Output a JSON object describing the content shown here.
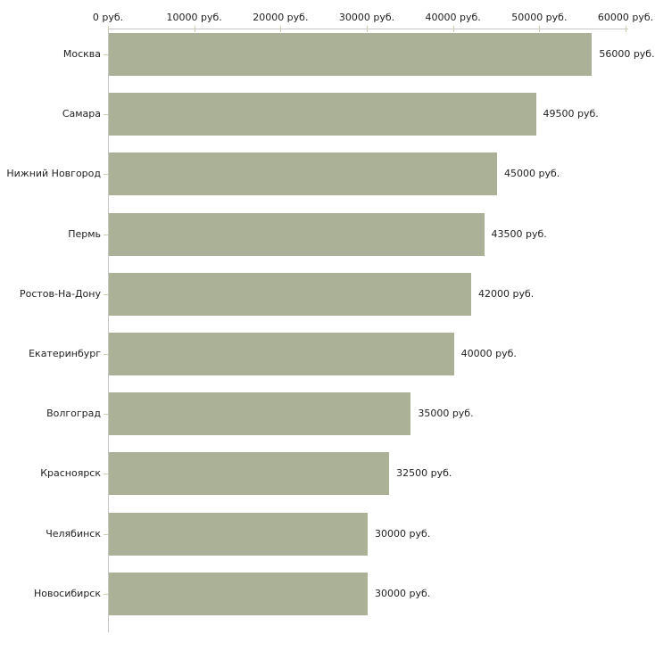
{
  "chart_data": {
    "type": "bar",
    "orientation": "horizontal",
    "title": "",
    "categories": [
      "Москва",
      "Самара",
      "Нижний Новгород",
      "Пермь",
      "Ростов-На-Дону",
      "Екатеринбург",
      "Волгоград",
      "Красноярск",
      "Челябинск",
      "Новосибирск"
    ],
    "values": [
      56000,
      49500,
      45000,
      43500,
      42000,
      40000,
      35000,
      32500,
      30000,
      30000
    ],
    "value_labels": [
      "56000 руб.",
      "49500 руб.",
      "45000 руб.",
      "43500 руб.",
      "42000 руб.",
      "40000 руб.",
      "35000 руб.",
      "32500 руб.",
      "30000 руб.",
      "30000 руб."
    ],
    "x_axis": {
      "position": "top",
      "tick_labels": [
        "0 руб.",
        "10000 руб.",
        "20000 руб.",
        "30000 руб.",
        "40000 руб.",
        "50000 руб.",
        "60000 руб."
      ],
      "tick_values": [
        0,
        10000,
        20000,
        30000,
        40000,
        50000,
        60000
      ],
      "xlim": [
        0,
        60000
      ]
    },
    "ylabel": "",
    "xlabel": "",
    "grid": "off",
    "legend": "none",
    "colors": {
      "bar": "#abb196",
      "axis_line": "#c6c6c6",
      "tick_mark": "#cfccab",
      "text": "#222222",
      "background": "#ffffff"
    }
  }
}
